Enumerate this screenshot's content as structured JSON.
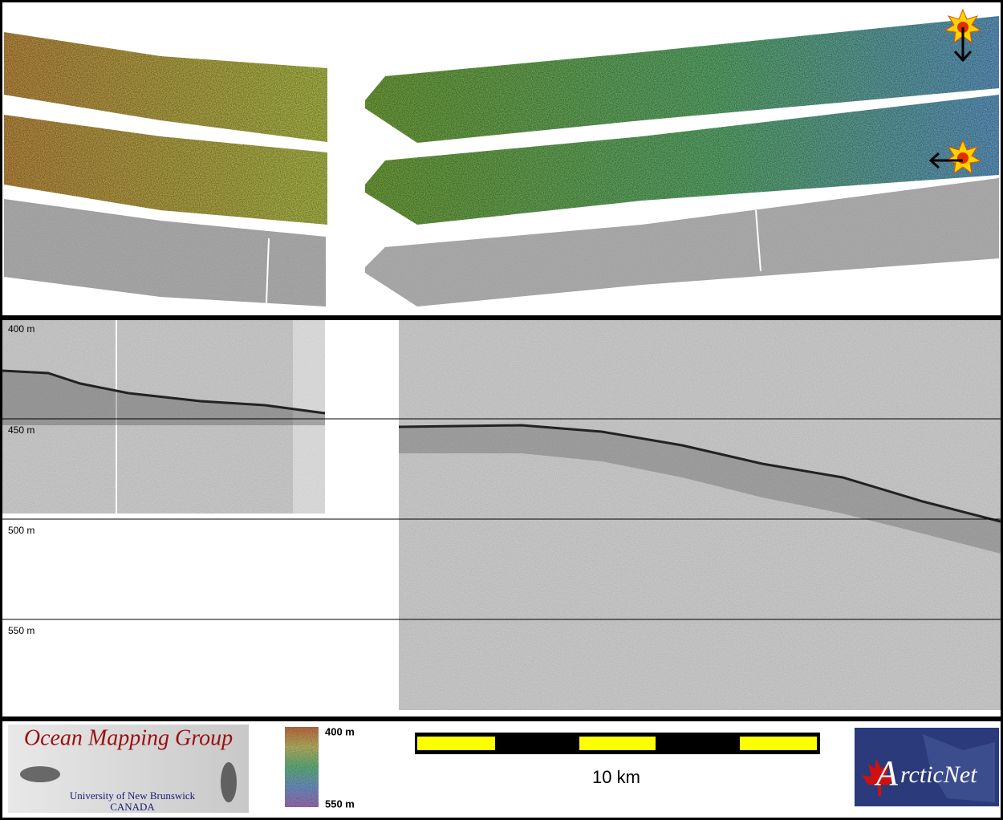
{
  "profile": {
    "depth_labels": [
      "400 m",
      "450 m",
      "500 m",
      "550 m"
    ]
  },
  "footer": {
    "logo": {
      "title": "Ocean Mapping Group",
      "line1": "University of New Brunswick",
      "line2": "CANADA"
    },
    "colorbar": {
      "top_label": "400 m",
      "bottom_label": "550 m"
    },
    "scale_bar": {
      "label": "10 km"
    },
    "partner_logo": {
      "initial": "A",
      "rest": "rcticNet"
    }
  }
}
